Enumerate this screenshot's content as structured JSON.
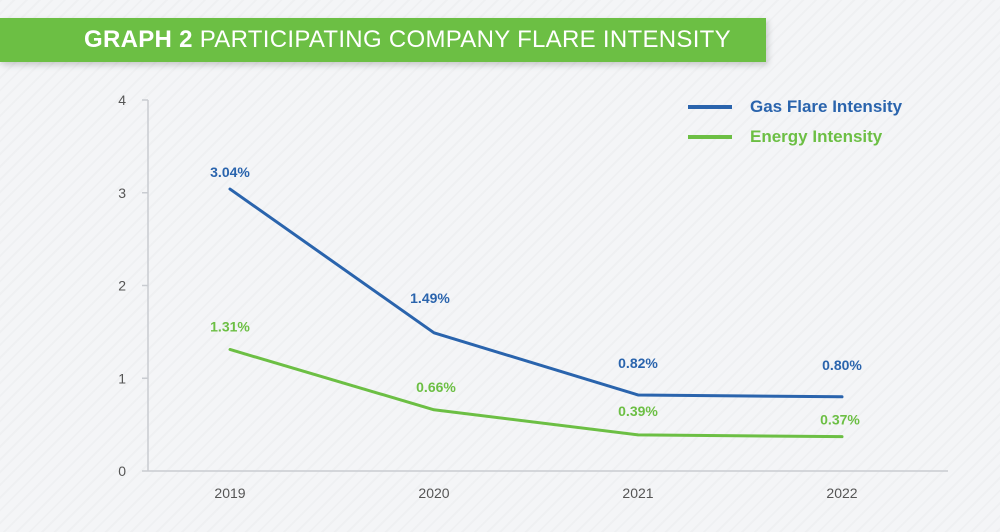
{
  "banner": {
    "strong": "GRAPH 2",
    "rest": "PARTICIPATING COMPANY FLARE INTENSITY",
    "color": "#6cbf44"
  },
  "chart_data": {
    "type": "line",
    "title": "GRAPH 2 PARTICIPATING COMPANY FLARE INTENSITY",
    "xlabel": "",
    "ylabel": "",
    "categories": [
      "2019",
      "2020",
      "2021",
      "2022"
    ],
    "ylim": [
      0,
      4
    ],
    "yticks": [
      "0",
      "1",
      "2",
      "3",
      "4"
    ],
    "grid": false,
    "legend_position": "top-right",
    "series": [
      {
        "name": "Gas Flare Intensity",
        "values": [
          3.04,
          1.49,
          0.82,
          0.8
        ],
        "labels": [
          "3.04%",
          "1.49%",
          "0.82%",
          "0.80%"
        ],
        "color": "#2a64ad"
      },
      {
        "name": "Energy Intensity",
        "values": [
          1.31,
          0.66,
          0.39,
          0.37
        ],
        "labels": [
          "1.31%",
          "0.66%",
          "0.39%",
          "0.37%"
        ],
        "color": "#6cbf44"
      }
    ]
  }
}
